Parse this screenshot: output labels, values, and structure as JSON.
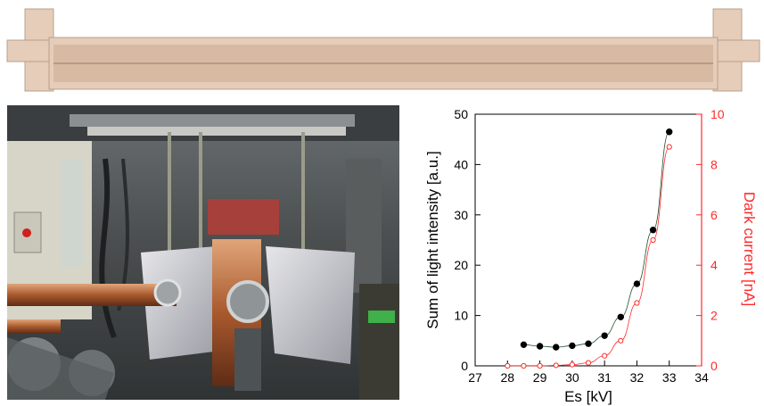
{
  "figure": {
    "top_panel": "cavity-cross-section",
    "left_panel": "beamline-photo"
  },
  "colors": {
    "cavity_fill": "#e6cdb9",
    "cavity_dark": "#b8a08d",
    "copper": "#b86a3c",
    "left_series": "#000000",
    "right_series": "#ff2a2a",
    "fit_line": "#1e4d2b"
  },
  "chart_data": {
    "type": "scatter",
    "title": "",
    "xlabel": "Es [kV]",
    "ylabel_left": "Sum of light intensity [a.u.]",
    "ylabel_right": "Dark current [nA]",
    "xlim": [
      27,
      34
    ],
    "ylim_left": [
      0,
      50
    ],
    "ylim_right": [
      0,
      10
    ],
    "x_ticks": [
      "27",
      "28",
      "29",
      "30",
      "31",
      "32",
      "33",
      "34"
    ],
    "y_ticks_left": [
      "0",
      "10",
      "20",
      "30",
      "40",
      "50"
    ],
    "y_ticks_right": [
      "0",
      "2",
      "4",
      "6",
      "8",
      "10"
    ],
    "grid": false,
    "legend": "none",
    "series": [
      {
        "axis": "left",
        "marker": "filled-circle",
        "color": "#000000",
        "x": [
          28.5,
          29.0,
          29.5,
          30.0,
          30.5,
          31.0,
          31.5,
          32.0,
          32.5,
          33.0
        ],
        "y": [
          4.2,
          3.9,
          3.7,
          4.0,
          4.4,
          6.0,
          9.7,
          16.3,
          27.0,
          46.5
        ]
      },
      {
        "axis": "right",
        "marker": "open-circle",
        "color": "#ff2a2a",
        "x": [
          28.0,
          28.5,
          29.0,
          29.5,
          30.0,
          30.5,
          31.0,
          31.5,
          32.0,
          32.5,
          33.0
        ],
        "y": [
          0.0,
          0.0,
          0.0,
          0.02,
          0.05,
          0.12,
          0.4,
          1.0,
          2.5,
          5.0,
          8.7
        ]
      }
    ]
  }
}
